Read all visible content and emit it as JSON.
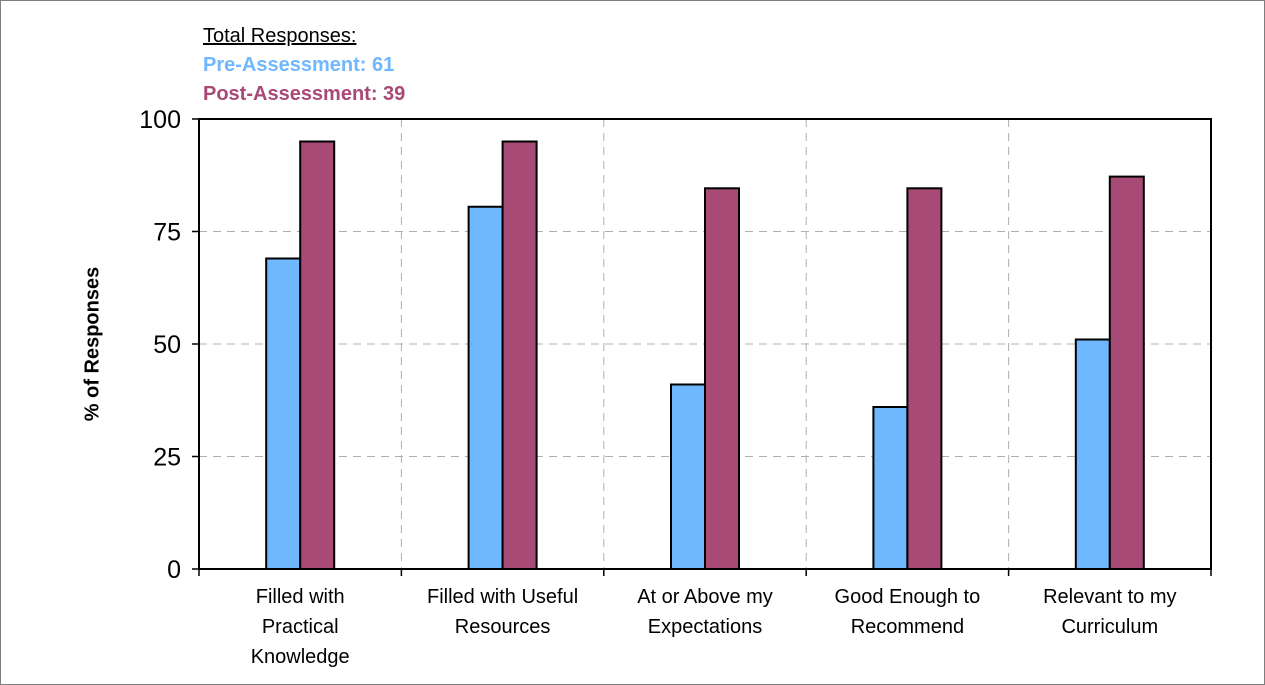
{
  "chart_data": {
    "type": "bar",
    "legend_title": "Total Responses:",
    "ylabel": "% of Responses",
    "xlabel": "",
    "ylim": [
      0,
      100
    ],
    "yticks": [
      0,
      25,
      50,
      75,
      100
    ],
    "grid": true,
    "categories": [
      [
        "Filled with",
        "Practical",
        "Knowledge"
      ],
      [
        "Filled with Useful",
        "Resources"
      ],
      [
        "At or Above my",
        "Expectations"
      ],
      [
        "Good Enough to",
        "Recommend"
      ],
      [
        "Relevant to my",
        "Curriculum"
      ]
    ],
    "series": [
      {
        "name": "Pre-Assessment: 61",
        "color": "#6fb7ff",
        "values": [
          69,
          80.5,
          41,
          36,
          51
        ]
      },
      {
        "name": "Post-Assessment: 39",
        "color": "#a84a76",
        "values": [
          95,
          95,
          84.6,
          84.6,
          87.2
        ]
      }
    ]
  }
}
